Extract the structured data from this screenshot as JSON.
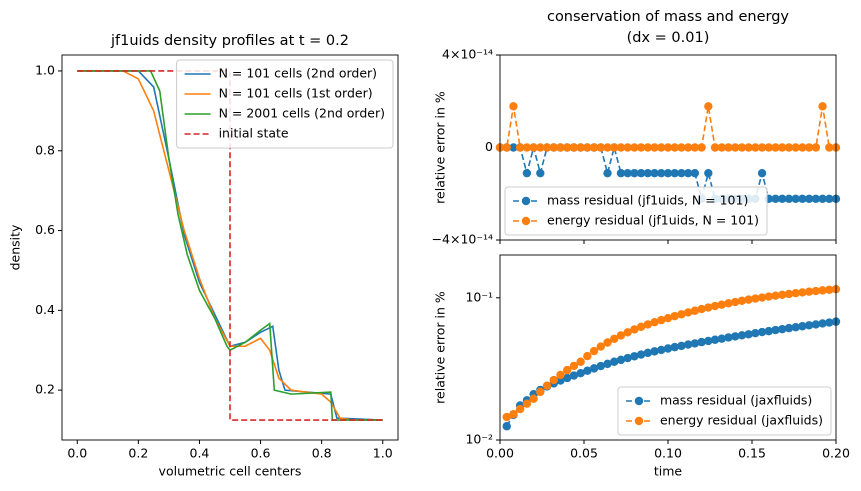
{
  "chart_data": [
    {
      "type": "line",
      "title": "jf1uids density profiles at t = 0.2",
      "xlabel": "volumetric cell centers",
      "ylabel": "density",
      "xlim": [
        -0.05,
        1.05
      ],
      "ylim": [
        0.075,
        1.04
      ],
      "xticks": [
        {
          "value": 0,
          "label": "0.0"
        },
        0.2,
        0.4,
        0.6,
        0.8,
        {
          "value": 1,
          "label": "1.0"
        }
      ],
      "yticks": [
        0.2,
        0.4,
        0.6,
        0.8,
        {
          "value": 1,
          "label": "1.0"
        }
      ],
      "legend": "upper right",
      "log": false,
      "series": [
        {
          "name": "N = 101 cells (2nd order)",
          "color": "#1f77b4",
          "dash": false,
          "marker": false,
          "x": [
            0,
            0.2,
            0.25,
            0.3,
            0.35,
            0.4,
            0.45,
            0.5,
            0.55,
            0.6,
            0.64,
            0.66,
            0.68,
            0.83,
            0.85,
            1
          ],
          "values": [
            1,
            1,
            0.96,
            0.78,
            0.59,
            0.47,
            0.39,
            0.31,
            0.32,
            0.345,
            0.36,
            0.25,
            0.2,
            0.19,
            0.13,
            0.125
          ]
        },
        {
          "name": "N = 101 cells (1st order)",
          "color": "#ff7f0e",
          "dash": false,
          "marker": false,
          "x": [
            0,
            0.15,
            0.2,
            0.25,
            0.3,
            0.35,
            0.4,
            0.45,
            0.5,
            0.55,
            0.6,
            0.63,
            0.66,
            0.7,
            0.8,
            0.83,
            0.86,
            0.9,
            1
          ],
          "values": [
            1,
            1,
            0.98,
            0.9,
            0.75,
            0.6,
            0.48,
            0.38,
            0.31,
            0.31,
            0.33,
            0.3,
            0.23,
            0.2,
            0.19,
            0.17,
            0.13,
            0.125,
            0.125
          ]
        },
        {
          "name": "N = 2001 cells (2nd order)",
          "color": "#2ca02c",
          "dash": false,
          "marker": false,
          "x": [
            0,
            0.24,
            0.27,
            0.3,
            0.33,
            0.36,
            0.4,
            0.45,
            0.49,
            0.5,
            0.55,
            0.6,
            0.63,
            0.645,
            0.7,
            0.83,
            0.835,
            1
          ],
          "values": [
            1,
            1,
            0.95,
            0.78,
            0.64,
            0.54,
            0.45,
            0.38,
            0.31,
            0.3,
            0.32,
            0.35,
            0.367,
            0.2,
            0.19,
            0.195,
            0.125,
            0.125
          ]
        },
        {
          "name": "initial state",
          "color": "#d62728",
          "dash": true,
          "marker": false,
          "x": [
            0,
            0.5,
            0.5,
            1
          ],
          "values": [
            1,
            1,
            0.125,
            0.125
          ]
        }
      ]
    },
    {
      "type": "line",
      "title": "conservation of mass and energy",
      "subtitle": "(dx = 0.01)",
      "ylabel": "relative error in %",
      "xlim": [
        0,
        0.2
      ],
      "ylim": [
        -4e-14,
        4e-14
      ],
      "xticks": [
        0,
        0.05,
        0.1,
        0.15,
        0.2
      ],
      "xticklabels": false,
      "yticks": [
        {
          "value": -4e-14,
          "label": "−4×10⁻¹⁴"
        },
        0,
        {
          "value": 4e-14,
          "label": "4×10⁻¹⁴"
        }
      ],
      "legend": "lower left",
      "log": false,
      "x": [
        0,
        0.004,
        0.008,
        0.012,
        0.016,
        0.02,
        0.024,
        0.028,
        0.032,
        0.036,
        0.04,
        0.044,
        0.048,
        0.052,
        0.056,
        0.06,
        0.064,
        0.068,
        0.072,
        0.076,
        0.08,
        0.084,
        0.088,
        0.092,
        0.096,
        0.1,
        0.104,
        0.108,
        0.112,
        0.116,
        0.12,
        0.124,
        0.128,
        0.132,
        0.136,
        0.14,
        0.144,
        0.148,
        0.152,
        0.156,
        0.16,
        0.164,
        0.168,
        0.172,
        0.176,
        0.18,
        0.184,
        0.188,
        0.192,
        0.196,
        0.2
      ],
      "series": [
        {
          "name": "mass residual (jf1uids, N = 101)",
          "color": "#1f77b4",
          "dash": true,
          "marker": true,
          "values": [
            0,
            0,
            0,
            0,
            -1.11e-14,
            0,
            -1.11e-14,
            0,
            0,
            0,
            0,
            0,
            0,
            0,
            0,
            0,
            -1.11e-14,
            0,
            -1.11e-14,
            -1.11e-14,
            -1.11e-14,
            -1.11e-14,
            -1.11e-14,
            -1.11e-14,
            -1.11e-14,
            -1.11e-14,
            -1.11e-14,
            -1.11e-14,
            -1.11e-14,
            -1.11e-14,
            -2.22e-14,
            -1.11e-14,
            -2.22e-14,
            -2.22e-14,
            -2.22e-14,
            -2.22e-14,
            -2.22e-14,
            -2.22e-14,
            -2.22e-14,
            -1.11e-14,
            -2.22e-14,
            -2.22e-14,
            -2.22e-14,
            -2.22e-14,
            -2.22e-14,
            -2.22e-14,
            -2.22e-14,
            -2.22e-14,
            -2.22e-14,
            -2.22e-14,
            -2.22e-14
          ]
        },
        {
          "name": "energy residual (jf1uids, N = 101)",
          "color": "#ff7f0e",
          "dash": true,
          "marker": true,
          "values": [
            0,
            0,
            1.78e-14,
            0,
            0,
            0,
            0,
            0,
            0,
            0,
            0,
            0,
            0,
            0,
            0,
            0,
            0,
            0,
            0,
            0,
            0,
            0,
            0,
            0,
            0,
            0,
            0,
            0,
            0,
            0,
            0,
            1.78e-14,
            0,
            0,
            0,
            0,
            0,
            0,
            0,
            0,
            0,
            0,
            0,
            0,
            0,
            0,
            0,
            0,
            1.78e-14,
            0,
            0
          ]
        }
      ]
    },
    {
      "type": "line",
      "xlabel": "time",
      "ylabel": "relative error in %",
      "xlim": [
        0,
        0.2
      ],
      "ylim": [
        0.01,
        0.2
      ],
      "xticks": [
        {
          "value": 0,
          "label": "0.00"
        },
        0.05,
        {
          "value": 0.1,
          "label": "0.10"
        },
        0.15,
        {
          "value": 0.2,
          "label": "0.20"
        }
      ],
      "yticks": [
        {
          "value": 0.01,
          "label": "10⁻²"
        },
        {
          "value": 0.1,
          "label": "10⁻¹"
        }
      ],
      "legend": "lower right",
      "log": true,
      "x": [
        0.004,
        0.008,
        0.012,
        0.016,
        0.02,
        0.024,
        0.028,
        0.032,
        0.036,
        0.04,
        0.044,
        0.048,
        0.052,
        0.056,
        0.06,
        0.064,
        0.068,
        0.072,
        0.076,
        0.08,
        0.084,
        0.088,
        0.092,
        0.096,
        0.1,
        0.104,
        0.108,
        0.112,
        0.116,
        0.12,
        0.124,
        0.128,
        0.132,
        0.136,
        0.14,
        0.144,
        0.148,
        0.152,
        0.156,
        0.16,
        0.164,
        0.168,
        0.172,
        0.176,
        0.18,
        0.184,
        0.188,
        0.192,
        0.196,
        0.2
      ],
      "series": [
        {
          "name": "mass residual (jaxfluids)",
          "color": "#1f77b4",
          "dash": true,
          "marker": true,
          "values": [
            0.0125,
            0.015,
            0.0175,
            0.019,
            0.021,
            0.0225,
            0.0238,
            0.025,
            0.0262,
            0.0273,
            0.0284,
            0.0295,
            0.0307,
            0.0319,
            0.0331,
            0.0343,
            0.0355,
            0.0366,
            0.0377,
            0.0388,
            0.0399,
            0.041,
            0.042,
            0.043,
            0.044,
            0.045,
            0.0459,
            0.0469,
            0.0478,
            0.0488,
            0.0497,
            0.0507,
            0.0516,
            0.0526,
            0.0535,
            0.0545,
            0.0554,
            0.0564,
            0.0574,
            0.0583,
            0.0593,
            0.0602,
            0.0612,
            0.0621,
            0.0631,
            0.0641,
            0.065,
            0.066,
            0.067,
            0.068
          ]
        },
        {
          "name": "energy residual (jaxfluids)",
          "color": "#ff7f0e",
          "dash": true,
          "marker": true,
          "values": [
            0.0145,
            0.0152,
            0.0165,
            0.018,
            0.0195,
            0.0218,
            0.0241,
            0.0264,
            0.0287,
            0.031,
            0.0332,
            0.0355,
            0.0389,
            0.0422,
            0.0454,
            0.0485,
            0.0515,
            0.0544,
            0.0572,
            0.0599,
            0.0625,
            0.065,
            0.0674,
            0.0697,
            0.0719,
            0.0743,
            0.0766,
            0.0789,
            0.0811,
            0.0833,
            0.0854,
            0.0875,
            0.0895,
            0.0915,
            0.0934,
            0.0953,
            0.0971,
            0.0988,
            0.1004,
            0.102,
            0.1035,
            0.105,
            0.1064,
            0.1078,
            0.1091,
            0.1104,
            0.1116,
            0.1128,
            0.1139,
            0.115
          ]
        }
      ]
    }
  ]
}
